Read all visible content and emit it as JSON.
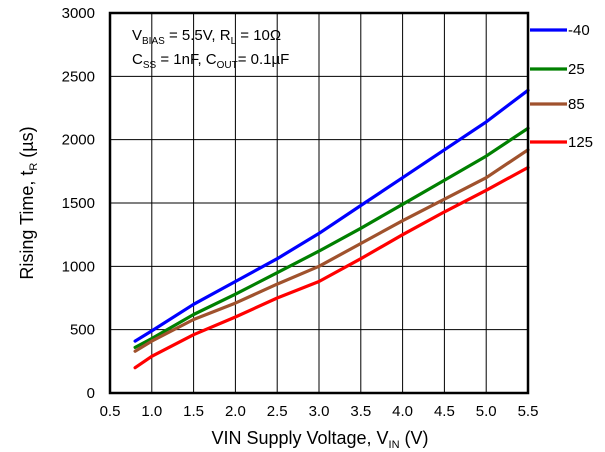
{
  "chart_data": {
    "type": "line",
    "xlabel": "VIN Supply Voltage, V",
    "xlabel_sub": "IN",
    "xlabel_unit": " (V)",
    "ylabel": "Rising Time, t",
    "ylabel_sub": "R",
    "ylabel_unit": " (µs)",
    "xlim": [
      0.5,
      5.5
    ],
    "ylim": [
      0,
      3000
    ],
    "xticks": [
      "0.5",
      "1.0",
      "1.5",
      "2.0",
      "2.5",
      "3.0",
      "3.5",
      "4.0",
      "4.5",
      "5.0",
      "5.5"
    ],
    "yticks": [
      "0",
      "500",
      "1000",
      "1500",
      "2000",
      "2500",
      "3000"
    ],
    "grid": true,
    "legend_position": "right",
    "annotation": {
      "line1": {
        "v": "V",
        "v_sub": "BIAS",
        "v_rest": " = 5.5V, R",
        "r_sub": "L",
        "r_rest": " = 10Ω"
      },
      "line2": {
        "c": "C",
        "c_sub": "SS",
        "c_rest": " = 1nF, C",
        "cout_sub": "OUT",
        "cout_rest": "= 0.1µF"
      }
    },
    "series": [
      {
        "name": "-40",
        "color": "#0000ff",
        "x": [
          0.8,
          1.0,
          1.5,
          2.0,
          2.5,
          3.0,
          3.5,
          4.0,
          4.5,
          5.0,
          5.5
        ],
        "y": [
          410,
          490,
          700,
          880,
          1060,
          1260,
          1480,
          1700,
          1920,
          2140,
          2390
        ]
      },
      {
        "name": "25",
        "color": "#008000",
        "x": [
          0.8,
          1.0,
          1.5,
          2.0,
          2.5,
          3.0,
          3.5,
          4.0,
          4.5,
          5.0,
          5.5
        ],
        "y": [
          360,
          430,
          620,
          780,
          950,
          1120,
          1300,
          1490,
          1680,
          1870,
          2090
        ]
      },
      {
        "name": "85",
        "color": "#a0522d",
        "x": [
          0.8,
          1.0,
          1.5,
          2.0,
          2.5,
          3.0,
          3.5,
          4.0,
          4.5,
          5.0,
          5.5
        ],
        "y": [
          330,
          410,
          580,
          710,
          860,
          1000,
          1180,
          1360,
          1530,
          1700,
          1920
        ]
      },
      {
        "name": "125",
        "color": "#ff0000",
        "x": [
          0.8,
          1.0,
          1.5,
          2.0,
          2.5,
          3.0,
          3.5,
          4.0,
          4.5,
          5.0,
          5.5
        ],
        "y": [
          200,
          290,
          460,
          600,
          750,
          880,
          1060,
          1250,
          1430,
          1600,
          1780
        ]
      }
    ]
  }
}
